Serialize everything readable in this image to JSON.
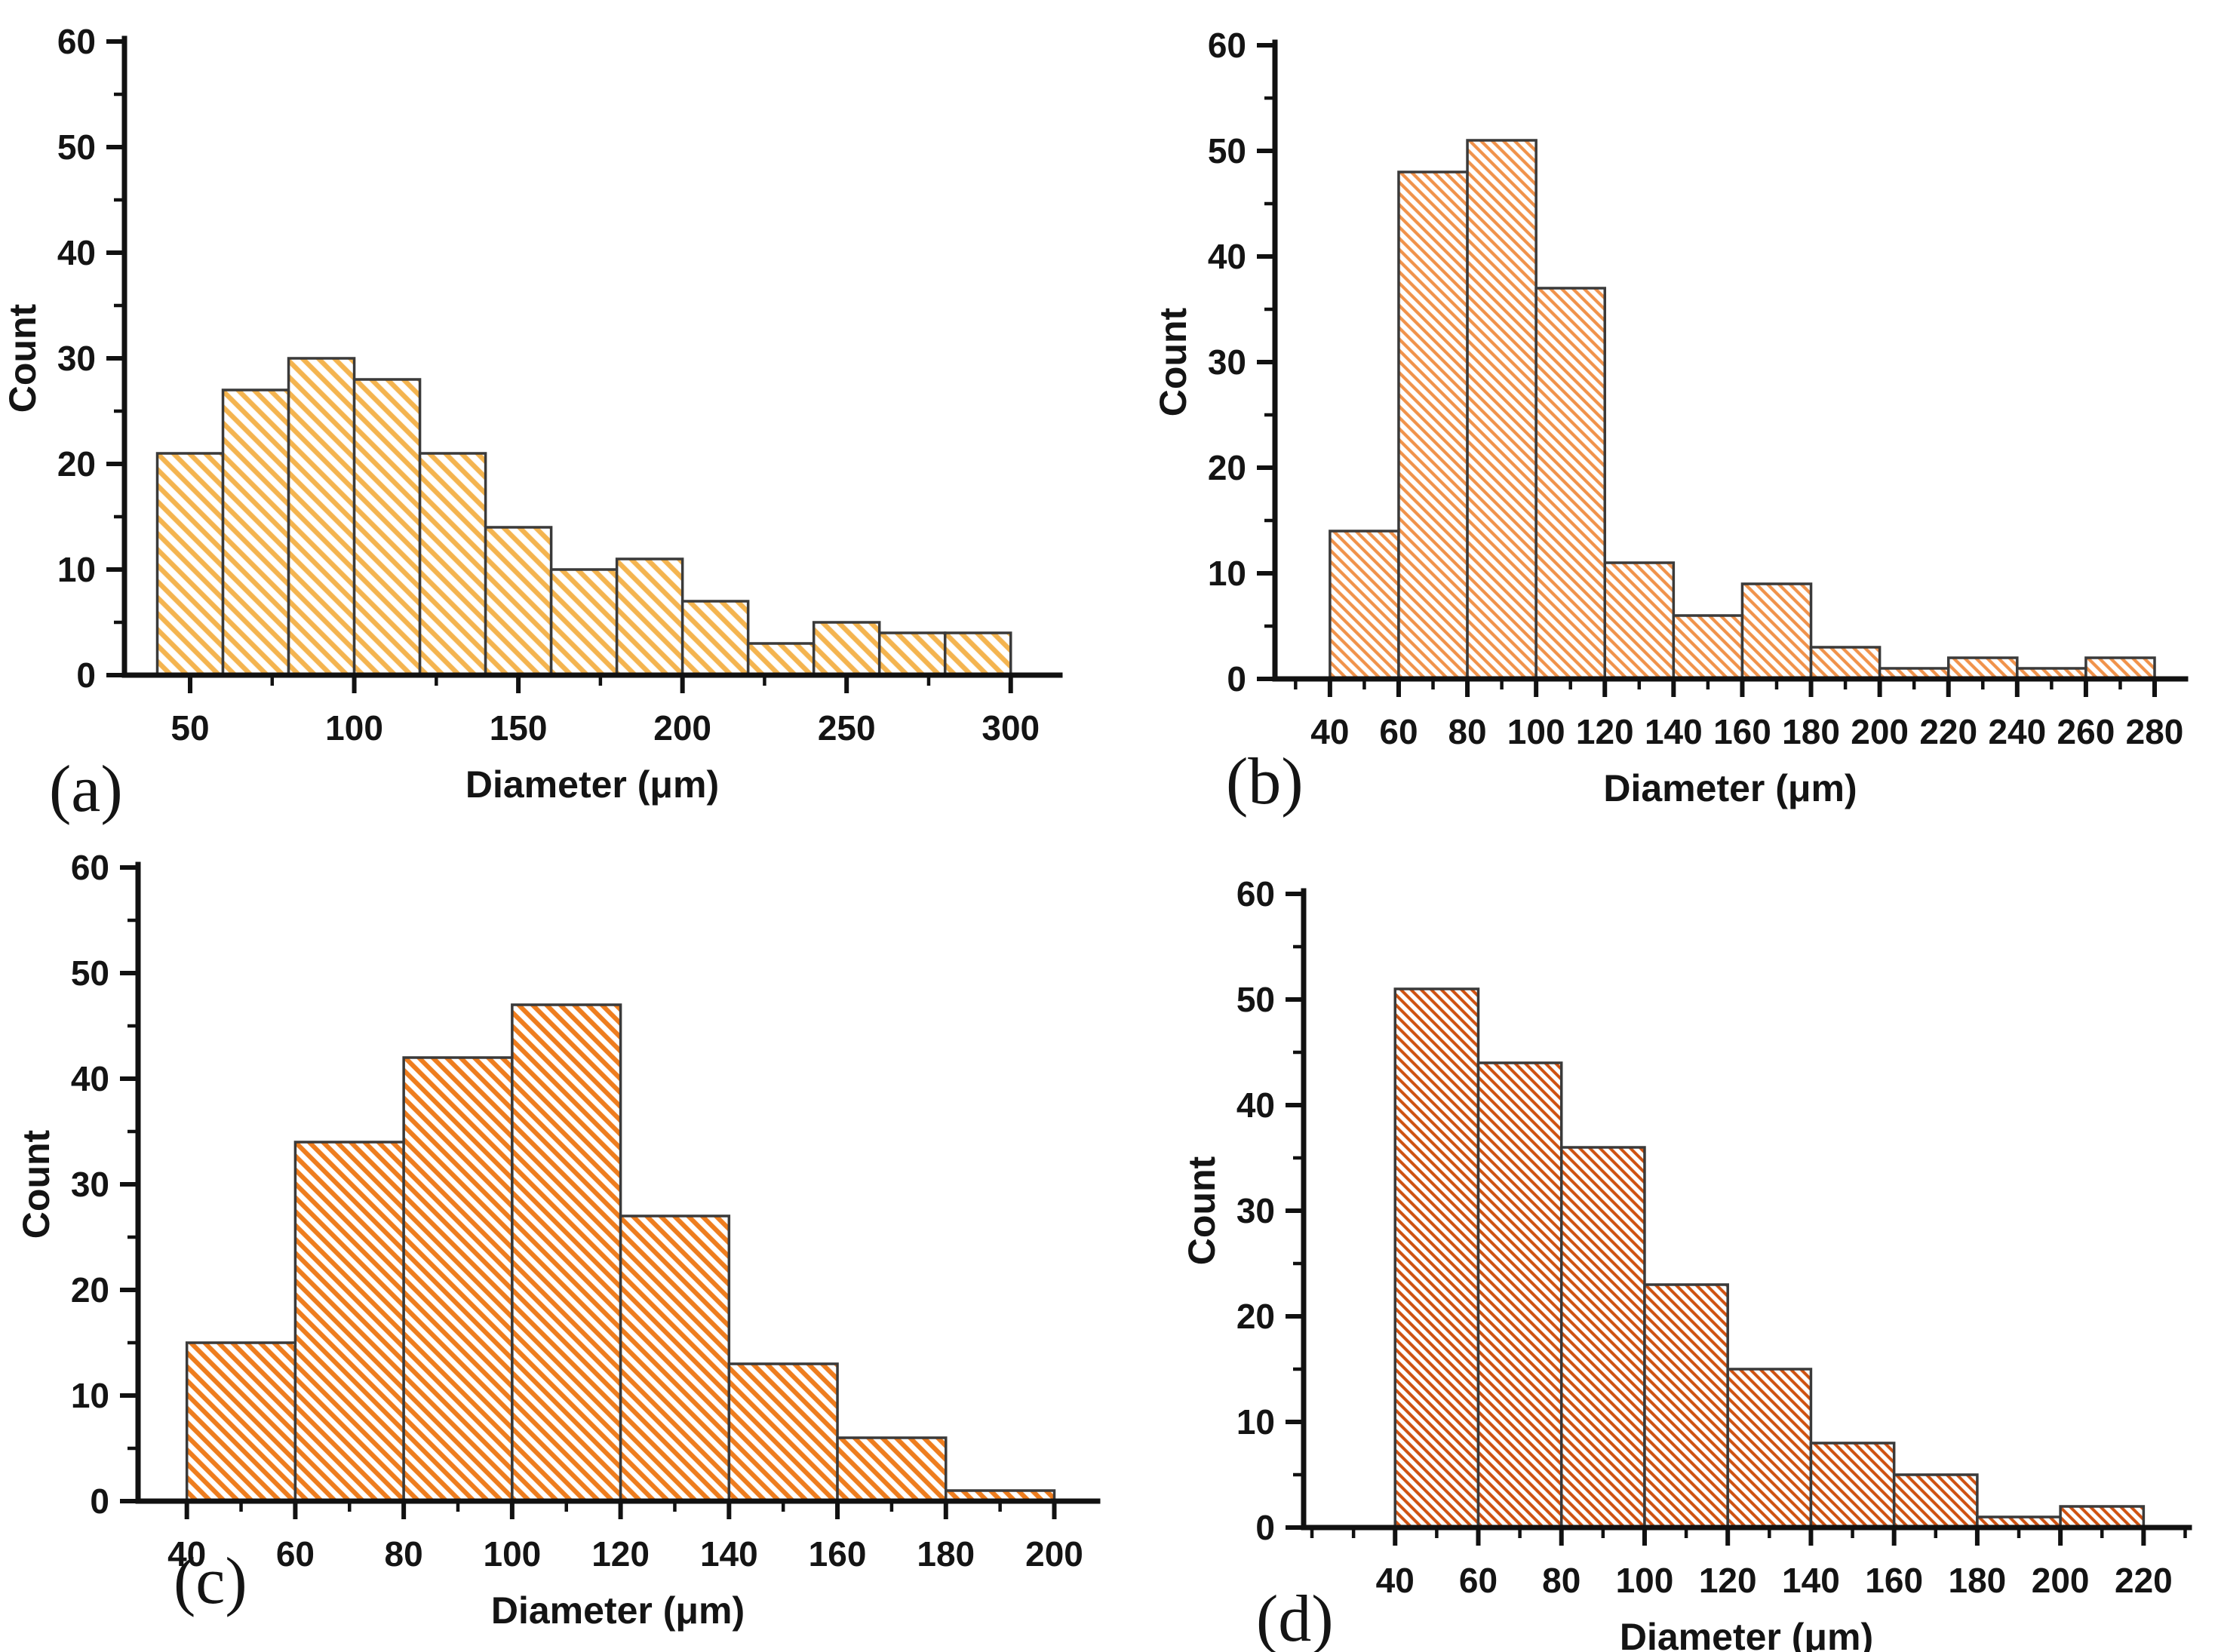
{
  "figure": {
    "background": "#ffffff",
    "text_color": "#141414",
    "axis_color": "#111111",
    "bar_edge_color": "#3a3a3a"
  },
  "chart_data": [
    {
      "type": "bar",
      "panel_label": "(a)",
      "title": "",
      "xlabel": "Diameter (μm)",
      "ylabel": "Count",
      "bin_start": 40,
      "bin_width": 20,
      "categories": [
        "40-60",
        "60-80",
        "80-100",
        "100-120",
        "120-140",
        "140-160",
        "160-180",
        "180-200",
        "200-220",
        "220-240",
        "240-260",
        "260-280",
        "280-300"
      ],
      "values": [
        21,
        27,
        30,
        28,
        21,
        14,
        10,
        11,
        7,
        3,
        5,
        4,
        4
      ],
      "xlim": [
        30,
        315
      ],
      "ylim": [
        0,
        60
      ],
      "xticks": [
        50,
        100,
        150,
        200,
        250,
        300
      ],
      "x_minor_step": 25,
      "yticks": [
        0,
        10,
        20,
        30,
        40,
        50,
        60
      ],
      "y_minor_step": 5,
      "grid": "off",
      "legend": "none",
      "hatch_color": "#F4B44F",
      "hatch_spacing": 15,
      "hatch_line_width": 6.5
    },
    {
      "type": "bar",
      "panel_label": "(b)",
      "title": "",
      "xlabel": "Diameter (μm)",
      "ylabel": "Count",
      "bin_start": 40,
      "bin_width": 20,
      "categories": [
        "40-60",
        "60-80",
        "80-100",
        "100-120",
        "120-140",
        "140-160",
        "160-180",
        "180-200",
        "200-220",
        "220-240",
        "240-260",
        "260-280"
      ],
      "values": [
        14,
        48,
        51,
        37,
        11,
        6,
        9,
        3,
        1,
        2,
        1,
        2
      ],
      "xlim": [
        24,
        289
      ],
      "ylim": [
        0,
        60
      ],
      "xticks": [
        40,
        60,
        80,
        100,
        120,
        140,
        160,
        180,
        200,
        220,
        240,
        260,
        280
      ],
      "x_minor_step": 10,
      "yticks": [
        0,
        10,
        20,
        30,
        40,
        50,
        60
      ],
      "y_minor_step": 5,
      "grid": "off",
      "legend": "none",
      "hatch_color": "#F0924A",
      "hatch_spacing": 10.5,
      "hatch_line_width": 4.2
    },
    {
      "type": "bar",
      "panel_label": "(c)",
      "title": "",
      "xlabel": "Diameter (μm)",
      "ylabel": "Count",
      "bin_start": 40,
      "bin_width": 20,
      "categories": [
        "40-60",
        "60-80",
        "80-100",
        "100-120",
        "120-140",
        "140-160",
        "160-180",
        "180-200"
      ],
      "values": [
        15,
        34,
        42,
        47,
        27,
        13,
        6,
        1
      ],
      "xlim": [
        31,
        208
      ],
      "ylim": [
        0,
        60
      ],
      "xticks": [
        40,
        60,
        80,
        100,
        120,
        140,
        160,
        180,
        200
      ],
      "x_minor_step": 10,
      "yticks": [
        0,
        10,
        20,
        30,
        40,
        50,
        60
      ],
      "y_minor_step": 5,
      "grid": "off",
      "legend": "none",
      "hatch_color": "#EE7D1E",
      "hatch_spacing": 13,
      "hatch_line_width": 6.2
    },
    {
      "type": "bar",
      "panel_label": "(d)",
      "title": "",
      "xlabel": "Diameter (μm)",
      "ylabel": "Count",
      "bin_start": 40,
      "bin_width": 20,
      "categories": [
        "40-60",
        "60-80",
        "80-100",
        "100-120",
        "120-140",
        "140-160",
        "160-180",
        "180-200",
        "200-220"
      ],
      "values": [
        51,
        44,
        36,
        23,
        15,
        8,
        5,
        1,
        2
      ],
      "xlim": [
        18,
        231
      ],
      "ylim": [
        0,
        60
      ],
      "xticks": [
        40,
        60,
        80,
        100,
        120,
        140,
        160,
        180,
        200,
        220
      ],
      "x_minor_step": 10,
      "yticks": [
        0,
        10,
        20,
        30,
        40,
        50,
        60
      ],
      "y_minor_step": 5,
      "grid": "off",
      "legend": "none",
      "hatch_color": "#CE5110",
      "hatch_spacing": 9.5,
      "hatch_line_width": 4.0
    }
  ]
}
